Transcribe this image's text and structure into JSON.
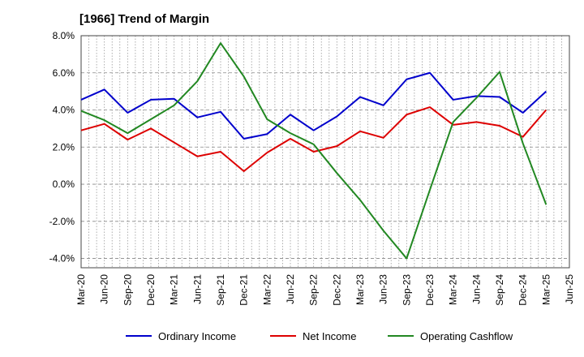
{
  "chart_data": {
    "type": "line",
    "title": "[1966]  Trend of Margin",
    "xlabel": "",
    "ylabel": "",
    "categories": [
      "Mar-20",
      "Jun-20",
      "Sep-20",
      "Dec-20",
      "Mar-21",
      "Jun-21",
      "Sep-21",
      "Dec-21",
      "Mar-22",
      "Jun-22",
      "Sep-22",
      "Dec-22",
      "Mar-23",
      "Jun-23",
      "Sep-23",
      "Dec-23",
      "Mar-24",
      "Jun-24",
      "Sep-24",
      "Dec-24",
      "Mar-25",
      "Jun-25"
    ],
    "ylim": [
      -4.5,
      8.0
    ],
    "yticks": [
      8.0,
      6.0,
      4.0,
      2.0,
      0.0,
      -2.0,
      -4.0
    ],
    "ytick_labels": [
      "8.0%",
      "6.0%",
      "4.0%",
      "2.0%",
      "0.0%",
      "-2.0%",
      "-4.0%"
    ],
    "grid": true,
    "legend_position": "bottom",
    "series": [
      {
        "name": "Ordinary Income",
        "color": "#0000cc",
        "values": [
          4.55,
          5.1,
          3.85,
          4.55,
          4.6,
          3.6,
          3.9,
          2.45,
          2.7,
          3.75,
          2.9,
          3.65,
          4.7,
          4.25,
          5.65,
          6.0,
          4.55,
          4.75,
          4.7,
          3.85,
          5.0,
          null
        ]
      },
      {
        "name": "Net Income",
        "color": "#dd0000",
        "values": [
          2.9,
          3.25,
          2.4,
          3.0,
          2.25,
          1.5,
          1.75,
          0.7,
          1.7,
          2.45,
          1.75,
          2.05,
          2.85,
          2.5,
          3.75,
          4.15,
          3.2,
          3.35,
          3.15,
          2.55,
          4.0,
          null
        ]
      },
      {
        "name": "Operating Cashflow",
        "color": "#228822",
        "values": [
          3.95,
          3.45,
          2.75,
          3.5,
          4.25,
          5.55,
          7.6,
          5.8,
          3.5,
          2.75,
          2.15,
          0.6,
          -0.85,
          -2.5,
          -4.0,
          -0.3,
          3.35,
          4.65,
          6.05,
          2.2,
          -1.1,
          null
        ]
      }
    ]
  }
}
